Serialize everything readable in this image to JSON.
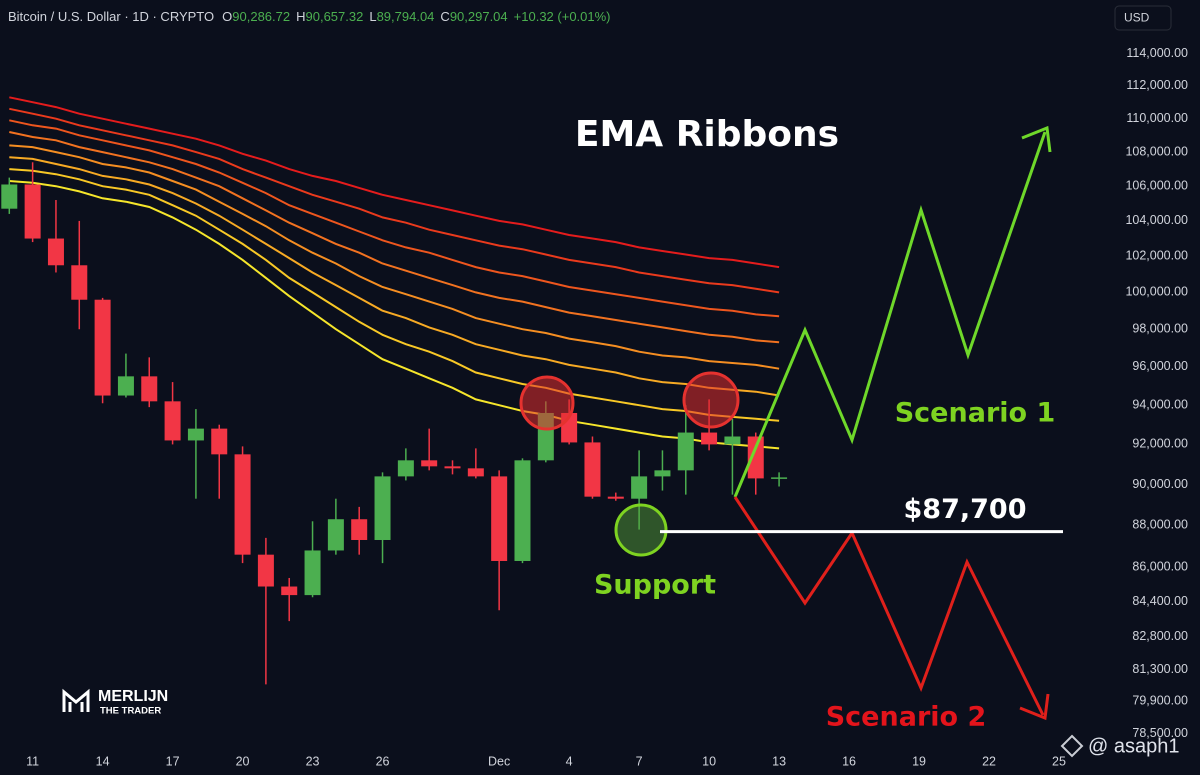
{
  "header": {
    "symbol": "Bitcoin / U.S. Dollar · 1D · CRYPTO",
    "ohlc": [
      {
        "key": "O",
        "value": "90,286.72"
      },
      {
        "key": "H",
        "value": "90,657.32"
      },
      {
        "key": "L",
        "value": "89,794.04"
      },
      {
        "key": "C",
        "value": "90,297.04"
      }
    ],
    "change": "+10.32 (+0.01%)",
    "currency": "USD"
  },
  "chart_data": {
    "type": "candlestick",
    "title": "EMA Ribbons",
    "log": true,
    "grid": false,
    "up_color": "#4caf50",
    "down_color": "#f23645",
    "categories": [
      null,
      "11",
      null,
      null,
      "14",
      null,
      null,
      "17",
      null,
      null,
      "20",
      null,
      null,
      "23",
      null,
      null,
      "26",
      null,
      null,
      null,
      null,
      "Dec",
      null,
      null,
      "4",
      null,
      null,
      "7",
      null,
      null,
      "10",
      null,
      null,
      "13",
      null,
      null,
      "16",
      null,
      null,
      "19",
      null,
      null,
      "22",
      null,
      null,
      "25"
    ],
    "open": [
      104700,
      106100,
      103000,
      101500,
      99600,
      94500,
      95500,
      94200,
      92200,
      92800,
      91500,
      86600,
      85100,
      84700,
      86800,
      88300,
      87300,
      90400,
      91200,
      90900,
      90800,
      90400,
      86300,
      91200,
      93600,
      92100,
      89400,
      89300,
      90400,
      90700,
      92600,
      92000,
      92400,
      90300,
      null,
      null,
      null,
      null,
      null,
      null,
      null,
      null,
      null,
      null,
      null,
      null
    ],
    "high": [
      106500,
      107400,
      105200,
      104000,
      99700,
      96700,
      96500,
      95200,
      93800,
      93000,
      91900,
      87400,
      85500,
      88200,
      89300,
      88900,
      90600,
      91800,
      92800,
      91200,
      91800,
      90700,
      91300,
      94200,
      94300,
      92400,
      89600,
      91700,
      91700,
      94000,
      94300,
      93300,
      92600,
      90600,
      null,
      null,
      null,
      null,
      null,
      null,
      null,
      null,
      null,
      null,
      null,
      null
    ],
    "low": [
      104400,
      102800,
      101100,
      98000,
      94100,
      94400,
      93900,
      92000,
      89300,
      89300,
      86200,
      80650,
      83500,
      84600,
      86600,
      86600,
      86200,
      90200,
      90700,
      90500,
      90300,
      84000,
      86200,
      91100,
      92000,
      89300,
      89200,
      87800,
      89700,
      89500,
      91700,
      89500,
      89500,
      89900,
      null,
      null,
      null,
      null,
      null,
      null,
      null,
      null,
      null,
      null,
      null,
      null
    ],
    "close": [
      106100,
      103000,
      101500,
      99600,
      94500,
      95500,
      94200,
      92200,
      92800,
      91500,
      86600,
      85100,
      84700,
      86800,
      88300,
      87300,
      90400,
      91200,
      90900,
      90800,
      90400,
      86300,
      91200,
      93600,
      92100,
      89400,
      89300,
      90400,
      90700,
      92600,
      92000,
      92400,
      90300,
      90350,
      null,
      null,
      null,
      null,
      null,
      null,
      null,
      null,
      null,
      null,
      null,
      null
    ],
    "ribbons": [
      {
        "color": "#e51c1c",
        "values": [
          111300,
          111000,
          110700,
          110300,
          110000,
          109700,
          109400,
          109100,
          108800,
          108400,
          107900,
          107500,
          107000,
          106600,
          106300,
          105900,
          105500,
          105200,
          104900,
          104600,
          104300,
          104000,
          103800,
          103500,
          103200,
          103000,
          102800,
          102500,
          102300,
          102100,
          101900,
          101800,
          101600,
          101400,
          null,
          null,
          null,
          null,
          null,
          null,
          null,
          null,
          null,
          null,
          null,
          null
        ]
      },
      {
        "color": "#ea3a1c",
        "values": [
          110600,
          110300,
          110000,
          109600,
          109300,
          109000,
          108700,
          108400,
          108000,
          107600,
          107000,
          106500,
          106000,
          105500,
          105100,
          104700,
          104200,
          103900,
          103500,
          103200,
          102900,
          102600,
          102400,
          102100,
          101800,
          101600,
          101400,
          101100,
          100900,
          100700,
          100500,
          100400,
          100200,
          100000,
          null,
          null,
          null,
          null,
          null,
          null,
          null,
          null,
          null,
          null,
          null,
          null
        ]
      },
      {
        "color": "#ee561e",
        "values": [
          109900,
          109600,
          109400,
          109000,
          108700,
          108400,
          108100,
          107700,
          107300,
          106800,
          106200,
          105600,
          104900,
          104400,
          103900,
          103400,
          102900,
          102500,
          102200,
          101800,
          101400,
          101100,
          100900,
          100600,
          100300,
          100100,
          99900,
          99700,
          99500,
          99300,
          99100,
          99000,
          98800,
          98700,
          null,
          null,
          null,
          null,
          null,
          null,
          null,
          null,
          null,
          null,
          null,
          null
        ]
      },
      {
        "color": "#f27220",
        "values": [
          109200,
          108900,
          108700,
          108300,
          108000,
          107700,
          107400,
          107000,
          106500,
          106000,
          105300,
          104600,
          103900,
          103300,
          102700,
          102200,
          101600,
          101200,
          100800,
          100400,
          100000,
          99700,
          99500,
          99200,
          98900,
          98700,
          98500,
          98300,
          98100,
          97900,
          97700,
          97600,
          97400,
          97300,
          null,
          null,
          null,
          null,
          null,
          null,
          null,
          null,
          null,
          null,
          null,
          null
        ]
      },
      {
        "color": "#f58e22",
        "values": [
          108400,
          108300,
          108000,
          107700,
          107300,
          107100,
          106800,
          106300,
          105800,
          105100,
          104400,
          103700,
          102900,
          102200,
          101600,
          100900,
          100300,
          99900,
          99500,
          99100,
          98600,
          98300,
          98000,
          97800,
          97500,
          97300,
          97100,
          96800,
          96600,
          96500,
          96300,
          96200,
          96100,
          95900,
          null,
          null,
          null,
          null,
          null,
          null,
          null,
          null,
          null,
          null,
          null,
          null
        ]
      },
      {
        "color": "#f7aa24",
        "values": [
          107700,
          107600,
          107300,
          107000,
          106600,
          106400,
          106100,
          105600,
          105000,
          104300,
          103500,
          102700,
          101900,
          101100,
          100400,
          99700,
          99000,
          98600,
          98100,
          97700,
          97200,
          96900,
          96600,
          96400,
          96100,
          95900,
          95700,
          95400,
          95200,
          95100,
          94900,
          94800,
          94700,
          94500,
          null,
          null,
          null,
          null,
          null,
          null,
          null,
          null,
          null,
          null,
          null,
          null
        ]
      },
      {
        "color": "#f8c826",
        "values": [
          107000,
          106900,
          106700,
          106400,
          106000,
          105800,
          105500,
          104900,
          104300,
          103500,
          102700,
          101800,
          100800,
          100000,
          99200,
          98400,
          97700,
          97200,
          96800,
          96300,
          95700,
          95400,
          95100,
          94900,
          94600,
          94400,
          94200,
          94000,
          93800,
          93700,
          93500,
          93400,
          93300,
          93200,
          null,
          null,
          null,
          null,
          null,
          null,
          null,
          null,
          null,
          null,
          null,
          null
        ]
      },
      {
        "color": "#f6e62b",
        "values": [
          106300,
          106200,
          106000,
          105700,
          105300,
          105100,
          104800,
          104200,
          103500,
          102700,
          101800,
          100800,
          99800,
          98900,
          98000,
          97200,
          96400,
          95900,
          95400,
          94900,
          94300,
          94000,
          93700,
          93500,
          93200,
          93000,
          92800,
          92600,
          92400,
          92300,
          92100,
          92000,
          91900,
          91800,
          null,
          null,
          null,
          null,
          null,
          null,
          null,
          null,
          null,
          null,
          null,
          null
        ]
      }
    ],
    "ylim": [
      77800,
      117400
    ],
    "yticks": [
      {
        "value": 114000,
        "label": "114,000.00"
      },
      {
        "value": 112000,
        "label": "112,000.00"
      },
      {
        "value": 110000,
        "label": "110,000.00"
      },
      {
        "value": 108000,
        "label": "108,000.00"
      },
      {
        "value": 106000,
        "label": "106,000.00"
      },
      {
        "value": 104000,
        "label": "104,000.00"
      },
      {
        "value": 102000,
        "label": "102,000.00"
      },
      {
        "value": 100000,
        "label": "100,000.00"
      },
      {
        "value": 98000,
        "label": "98,000.00"
      },
      {
        "value": 96000,
        "label": "96,000.00"
      },
      {
        "value": 94000,
        "label": "94,000.00"
      },
      {
        "value": 92000,
        "label": "92,000.00"
      },
      {
        "value": 90000,
        "label": "90,000.00"
      },
      {
        "value": 88000,
        "label": "88,000.00"
      },
      {
        "value": 86000,
        "label": "86,000.00"
      },
      {
        "value": 84400,
        "label": "84,400.00"
      },
      {
        "value": 82800,
        "label": "82,800.00"
      },
      {
        "value": 81300,
        "label": "81,300.00"
      },
      {
        "value": 79900,
        "label": "79,900.00"
      },
      {
        "value": 78500,
        "label": "78,500.00"
      }
    ],
    "support_level": {
      "value": 87700,
      "label": "$87,700"
    },
    "scenarios": [
      "Scenario 1",
      "Scenario 2"
    ],
    "support_label": "Support",
    "watermark": [
      "MERLIJN",
      "THE TRADER"
    ],
    "credit": "@ asaph1"
  }
}
